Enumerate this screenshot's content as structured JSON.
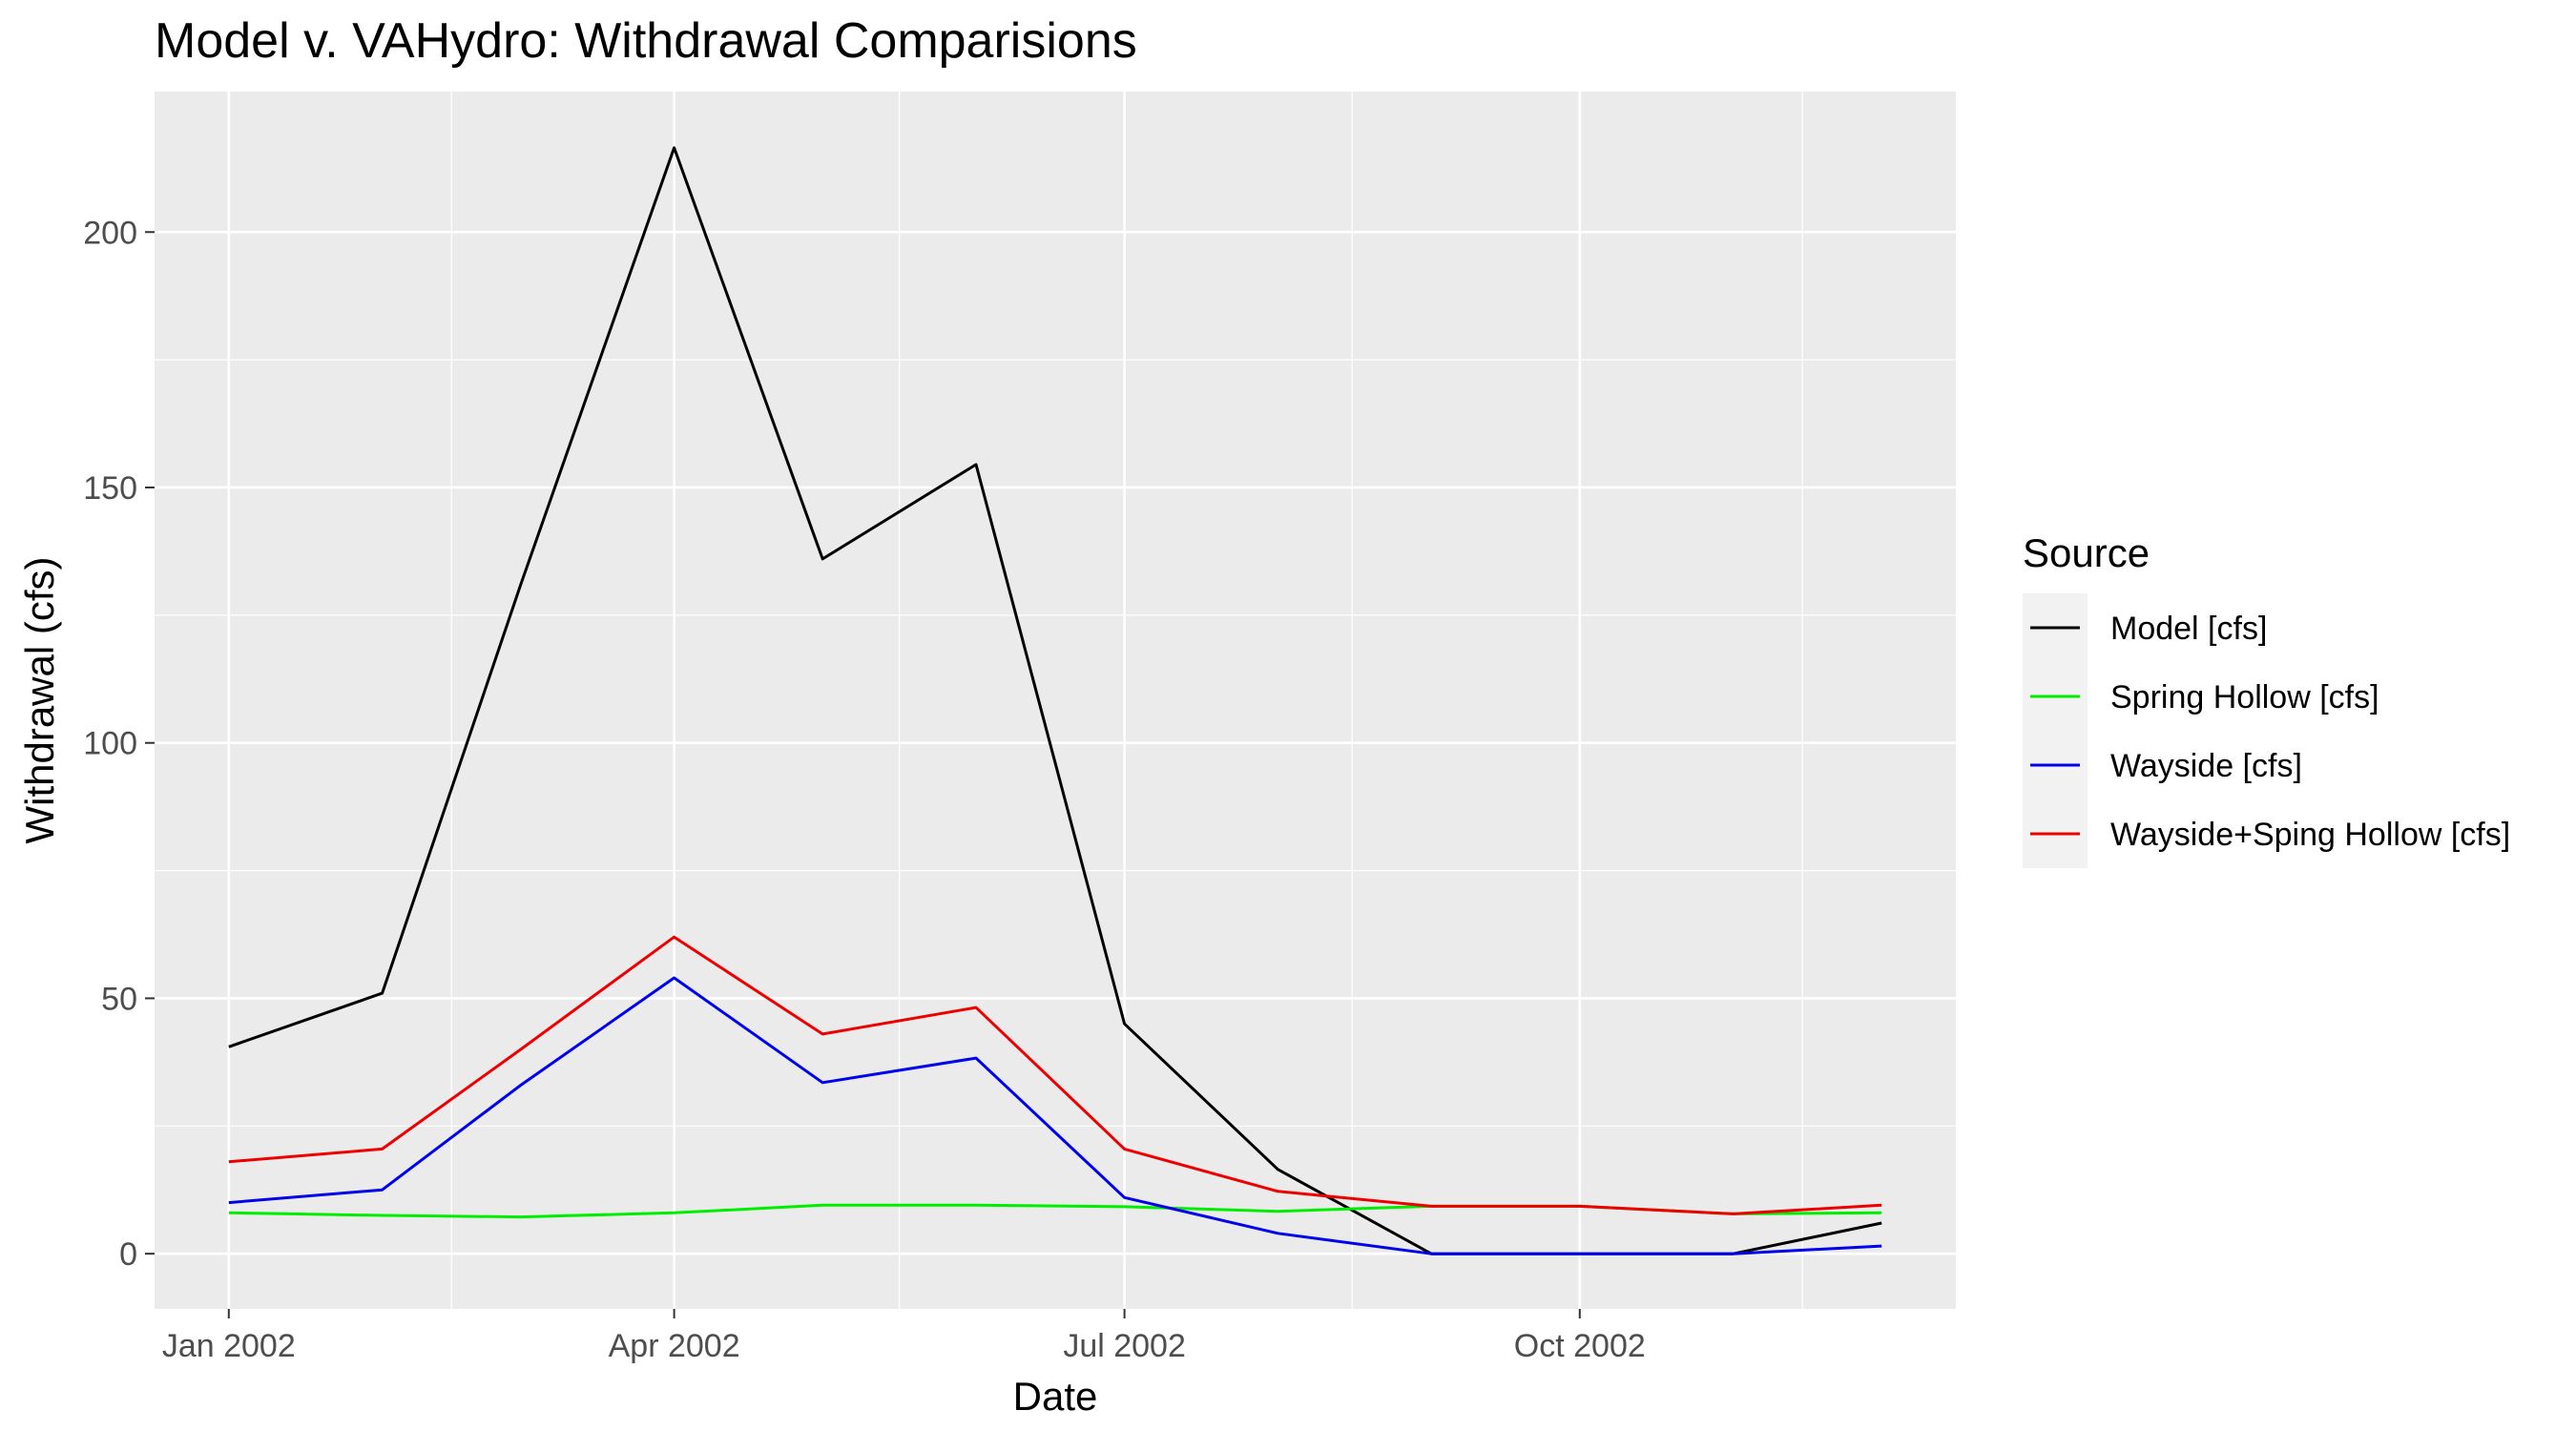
{
  "chart_data": {
    "type": "line",
    "title": "Model v. VAHydro: Withdrawal Comparisions",
    "xlabel": "Date",
    "ylabel": "Withdrawal (cfs)",
    "x": [
      "2002-01-01",
      "2002-02-01",
      "2002-03-01",
      "2002-04-01",
      "2002-05-01",
      "2002-06-01",
      "2002-07-01",
      "2002-08-01",
      "2002-09-01",
      "2002-10-01",
      "2002-11-01",
      "2002-12-01"
    ],
    "x_ticks": [
      {
        "date": "2002-01-01",
        "label": "Jan 2002"
      },
      {
        "date": "2002-04-01",
        "label": "Apr 2002"
      },
      {
        "date": "2002-07-01",
        "label": "Jul 2002"
      },
      {
        "date": "2002-10-01",
        "label": "Oct 2002"
      }
    ],
    "xlim": [
      "2001-12-17",
      "2002-12-16"
    ],
    "y_ticks": [
      0,
      50,
      100,
      150,
      200
    ],
    "ylim": [
      -10.8,
      227.5
    ],
    "grid": true,
    "legend": {
      "title": "Source",
      "position": "right"
    },
    "series": [
      {
        "name": "Model [cfs]",
        "color": "#000000",
        "values": [
          40.5,
          51,
          131,
          216.5,
          136,
          154.5,
          45,
          16.5,
          0,
          0,
          0,
          6
        ]
      },
      {
        "name": "Spring Hollow [cfs]",
        "color": "#00ee00",
        "values": [
          8,
          7.5,
          7.2,
          8,
          9.5,
          9.5,
          9.2,
          8.3,
          9.3,
          9.3,
          7.8,
          8
        ]
      },
      {
        "name": "Wayside [cfs]",
        "color": "#0000ee",
        "values": [
          10,
          12.5,
          33,
          54,
          33.5,
          38.3,
          11,
          4,
          0,
          0,
          0,
          1.5
        ]
      },
      {
        "name": "Wayside+Sping Hollow [cfs]",
        "color": "#ee0000",
        "values": [
          18,
          20.5,
          40,
          62,
          43,
          48.2,
          20.5,
          12.2,
          9.3,
          9.3,
          7.8,
          9.5
        ]
      }
    ]
  }
}
